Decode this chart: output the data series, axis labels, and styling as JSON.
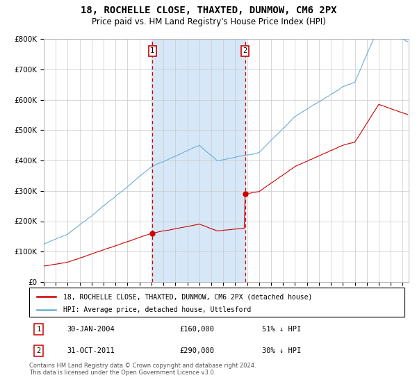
{
  "title": "18, ROCHELLE CLOSE, THAXTED, DUNMOW, CM6 2PX",
  "subtitle": "Price paid vs. HM Land Registry's House Price Index (HPI)",
  "ylim": [
    0,
    800000
  ],
  "yticks": [
    0,
    100000,
    200000,
    300000,
    400000,
    500000,
    600000,
    700000,
    800000
  ],
  "ytick_labels": [
    "£0",
    "£100K",
    "£200K",
    "£300K",
    "£400K",
    "£500K",
    "£600K",
    "£700K",
    "£800K"
  ],
  "xlim_start": 1995,
  "xlim_end": 2025.5,
  "sale1_date": 2004.08,
  "sale1_price": 160000,
  "sale2_date": 2011.83,
  "sale2_price": 290000,
  "hpi_color": "#6baed6",
  "price_color": "#cc0000",
  "span_color": "#d6e8f7",
  "legend_line1": "18, ROCHELLE CLOSE, THAXTED, DUNMOW, CM6 2PX (detached house)",
  "legend_line2": "HPI: Average price, detached house, Uttlesford",
  "table_entries": [
    {
      "num": "1",
      "date": "30-JAN-2004",
      "price": "£160,000",
      "pct": "51% ↓ HPI"
    },
    {
      "num": "2",
      "date": "31-OCT-2011",
      "price": "£290,000",
      "pct": "30% ↓ HPI"
    }
  ],
  "footnote": "Contains HM Land Registry data © Crown copyright and database right 2024.\nThis data is licensed under the Open Government Licence v3.0."
}
